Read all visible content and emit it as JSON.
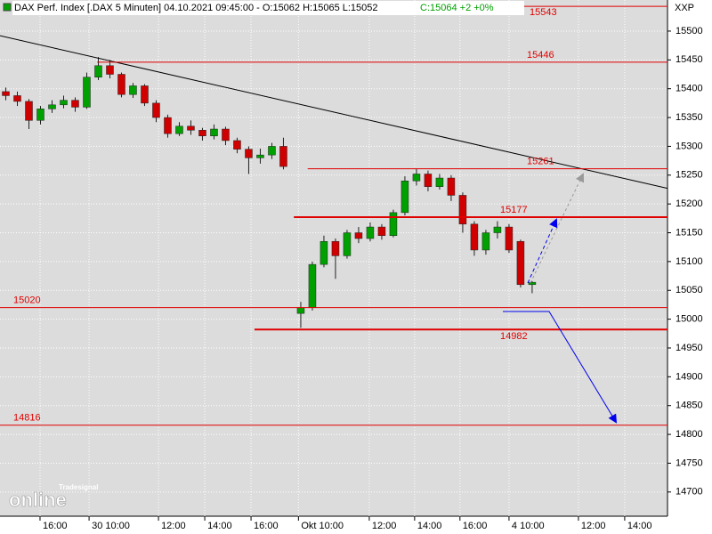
{
  "chart_data": {
    "type": "candlestick",
    "legend_text": "DAX Perf. Index [.DAX 5 Minuten] 04.10.2021 09:45:00 - O:15062 H:15065 L:15052",
    "legend_change": "C:15064 +2 +0%",
    "symbol": "XXP",
    "watermark_brand": "Tradesignal",
    "watermark_text": "online",
    "x": [
      0.25,
      0.75,
      1.25,
      1.75,
      2.25,
      2.75,
      3.25,
      3.75,
      4.25,
      4.75,
      5.25,
      5.75,
      6.25,
      6.75,
      7.25,
      7.75,
      8.25,
      8.75,
      9.25,
      9.75,
      10.25,
      10.75,
      11.25,
      11.75,
      12.25,
      13.0,
      13.5,
      14.0,
      14.5,
      15.0,
      15.5,
      16.0,
      16.5,
      17.0,
      17.5,
      18.0,
      18.5,
      19.0,
      19.5,
      20.0,
      20.5,
      21.0,
      21.5,
      22.0,
      22.5,
      23.0
    ],
    "open": [
      15395,
      15388,
      15378,
      15345,
      15365,
      15372,
      15380,
      15368,
      15420,
      15440,
      15425,
      15390,
      15405,
      15375,
      15350,
      15322,
      15335,
      15328,
      15318,
      15330,
      15310,
      15295,
      15280,
      15285,
      15300,
      15010,
      15020,
      15095,
      15135,
      15110,
      15150,
      15140,
      15160,
      15145,
      15185,
      15240,
      15252,
      15230,
      15245,
      15215,
      15165,
      15120,
      15150,
      15160,
      15135,
      15060
    ],
    "high": [
      15402,
      15395,
      15382,
      15370,
      15380,
      15388,
      15385,
      15428,
      15455,
      15450,
      15428,
      15410,
      15408,
      15380,
      15355,
      15342,
      15345,
      15332,
      15338,
      15334,
      15315,
      15300,
      15296,
      15306,
      15315,
      15030,
      15100,
      15145,
      15140,
      15155,
      15160,
      15168,
      15165,
      15190,
      15248,
      15261,
      15258,
      15252,
      15250,
      15220,
      15170,
      15155,
      15170,
      15165,
      15138,
      15066
    ],
    "low": [
      15380,
      15370,
      15330,
      15338,
      15358,
      15366,
      15360,
      15365,
      15415,
      15418,
      15385,
      15384,
      15370,
      15342,
      15315,
      15318,
      15320,
      15310,
      15312,
      15302,
      15288,
      15252,
      15270,
      15278,
      15260,
      14985,
      15015,
      15090,
      15070,
      15105,
      15132,
      15135,
      15138,
      15142,
      15180,
      15232,
      15222,
      15225,
      15205,
      15150,
      15110,
      15112,
      15140,
      15115,
      15055,
      15045
    ],
    "close": [
      15388,
      15378,
      15345,
      15365,
      15372,
      15380,
      15368,
      15420,
      15440,
      15425,
      15390,
      15405,
      15375,
      15350,
      15322,
      15335,
      15328,
      15318,
      15330,
      15310,
      15295,
      15280,
      15285,
      15300,
      15265,
      15020,
      15095,
      15135,
      15110,
      15150,
      15140,
      15160,
      15145,
      15185,
      15240,
      15252,
      15230,
      15245,
      15215,
      15165,
      15120,
      15150,
      15160,
      15120,
      15060,
      15064
    ],
    "up_color": "#00a000",
    "down_color": "#d00000",
    "xlim": [
      0,
      28.85
    ],
    "ylim": [
      14658,
      15554
    ],
    "yticks": [
      14700,
      14750,
      14800,
      14850,
      14900,
      14950,
      15000,
      15050,
      15100,
      15150,
      15200,
      15250,
      15300,
      15350,
      15400,
      15450,
      15500
    ],
    "xticks": [
      {
        "value": 1.73,
        "label": "16:00"
      },
      {
        "value": 3.85,
        "label": "30 10:00"
      },
      {
        "value": 6.85,
        "label": "12:00"
      },
      {
        "value": 8.85,
        "label": "14:00"
      },
      {
        "value": 10.85,
        "label": "16:00"
      },
      {
        "value": 12.9,
        "label": "Okt 10:00"
      },
      {
        "value": 15.96,
        "label": "12:00"
      },
      {
        "value": 17.92,
        "label": "14:00"
      },
      {
        "value": 19.88,
        "label": "16:00"
      },
      {
        "value": 22.0,
        "label": "4 10:00"
      },
      {
        "value": 25.0,
        "label": "12:00"
      },
      {
        "value": 27.0,
        "label": "14:00"
      }
    ],
    "grid": true,
    "levels": [
      {
        "value": 15543,
        "x0": 21.9,
        "bold": false
      },
      {
        "value": 15446,
        "x0": 4.2,
        "bold": false
      },
      {
        "value": 15261,
        "x0": 13.3,
        "bold": false
      },
      {
        "value": 15177,
        "x0": 12.7,
        "bold": true
      },
      {
        "value": 15020,
        "x0": 0,
        "bold": false
      },
      {
        "value": 14982,
        "x0": 11.0,
        "bold": true
      },
      {
        "value": 14816,
        "x0": 0,
        "bold": false
      }
    ],
    "level_color": "#e00000",
    "trendline": {
      "x": [
        0,
        28.85
      ],
      "values": [
        15492,
        15227
      ]
    }
  }
}
